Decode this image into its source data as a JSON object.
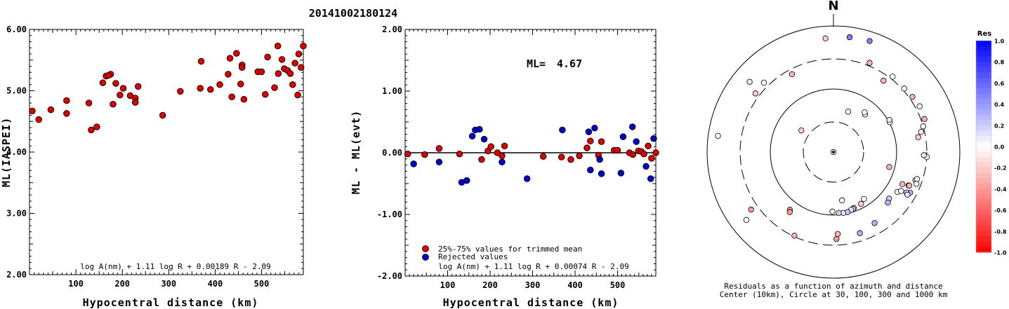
{
  "title": "20141002180124",
  "chart_data": [
    {
      "type": "scatter",
      "ylabel": "ML(IASPEI)",
      "xlabel": "Hypocentral distance (km)",
      "xlim": [
        0,
        590
      ],
      "ylim": [
        2.0,
        6.0
      ],
      "x_ticks": [
        "100",
        "200",
        "300",
        "400",
        "500"
      ],
      "y_ticks": [
        "2.00",
        "3.00",
        "4.00",
        "5.00",
        "6.00"
      ],
      "formula": "log A(nm) + 1.11 log R + 0.00189 R - 2.09",
      "series": [
        {
          "color": "#dd0000",
          "points": [
            [
              6,
              4.67
            ],
            [
              20,
              4.53
            ],
            [
              46,
              4.69
            ],
            [
              80,
              4.84
            ],
            [
              80,
              4.63
            ],
            [
              128,
              4.8
            ],
            [
              133,
              4.36
            ],
            [
              145,
              4.41
            ],
            [
              158,
              5.13
            ],
            [
              165,
              5.24
            ],
            [
              175,
              5.27
            ],
            [
              170,
              5.25
            ],
            [
              180,
              4.78
            ],
            [
              186,
              5.12
            ],
            [
              195,
              4.93
            ],
            [
              202,
              5.04
            ],
            [
              217,
              4.92
            ],
            [
              228,
              4.88
            ],
            [
              228,
              4.81
            ],
            [
              234,
              5.07
            ],
            [
              287,
              4.6
            ],
            [
              325,
              4.99
            ],
            [
              368,
              5.04
            ],
            [
              370,
              5.48
            ],
            [
              390,
              5.02
            ],
            [
              410,
              5.1
            ],
            [
              428,
              5.27
            ],
            [
              432,
              5.53
            ],
            [
              436,
              4.9
            ],
            [
              446,
              5.61
            ],
            [
              455,
              5.11
            ],
            [
              458,
              5.42
            ],
            [
              458,
              5.38
            ],
            [
              462,
              4.86
            ],
            [
              492,
              5.31
            ],
            [
              500,
              5.31
            ],
            [
              508,
              4.94
            ],
            [
              513,
              5.55
            ],
            [
              528,
              5.05
            ],
            [
              535,
              5.73
            ],
            [
              536,
              5.28
            ],
            [
              544,
              5.51
            ],
            [
              549,
              5.36
            ],
            [
              556,
              5.33
            ],
            [
              562,
              5.28
            ],
            [
              567,
              5.1
            ],
            [
              572,
              5.45
            ],
            [
              578,
              4.93
            ],
            [
              580,
              5.6
            ],
            [
              585,
              5.38
            ],
            [
              590,
              5.73
            ]
          ]
        }
      ]
    },
    {
      "type": "scatter",
      "ylabel": "ML - ML(evt)",
      "xlabel": "Hypocentral distance (km)",
      "xlim": [
        0,
        590
      ],
      "ylim": [
        -2.0,
        2.0
      ],
      "x_ticks": [
        "100",
        "200",
        "300",
        "400",
        "500"
      ],
      "y_ticks": [
        "-2.00",
        "-1.00",
        "0.00",
        "1.00",
        "2.00"
      ],
      "ml_label": "ML=",
      "ml_value": "4.67",
      "formula": "log A(nm) + 1.11 log R + 0.00074 R - 2.09",
      "reference_line": 0,
      "legend": [
        {
          "color": "#dd0000",
          "label": "25%-75% values for trimmed mean"
        },
        {
          "color": "#0000cc",
          "label": "Rejected values"
        }
      ],
      "series": [
        {
          "color": "#dd0000",
          "points": [
            [
              6,
              -0.02
            ],
            [
              46,
              -0.03
            ],
            [
              80,
              0.07
            ],
            [
              128,
              -0.02
            ],
            [
              180,
              -0.11
            ],
            [
              195,
              0.03
            ],
            [
              202,
              0.1
            ],
            [
              217,
              0.0
            ],
            [
              228,
              -0.05
            ],
            [
              234,
              0.11
            ],
            [
              325,
              -0.06
            ],
            [
              368,
              -0.07
            ],
            [
              390,
              -0.11
            ],
            [
              410,
              -0.05
            ],
            [
              428,
              0.08
            ],
            [
              436,
              0.19
            ],
            [
              455,
              -0.04
            ],
            [
              462,
              0.18
            ],
            [
              492,
              0.04
            ],
            [
              500,
              0.04
            ],
            [
              528,
              0.0
            ],
            [
              536,
              -0.03
            ],
            [
              549,
              0.03
            ],
            [
              556,
              0.02
            ],
            [
              562,
              -0.02
            ],
            [
              572,
              0.11
            ],
            [
              580,
              -0.09
            ],
            [
              590,
              0.0
            ]
          ]
        },
        {
          "color": "#0000cc",
          "points": [
            [
              20,
              -0.18
            ],
            [
              80,
              -0.15
            ],
            [
              133,
              -0.48
            ],
            [
              145,
              -0.45
            ],
            [
              158,
              0.27
            ],
            [
              165,
              0.37
            ],
            [
              175,
              0.38
            ],
            [
              186,
              0.22
            ],
            [
              228,
              -0.15
            ],
            [
              287,
              -0.42
            ],
            [
              370,
              0.37
            ],
            [
              432,
              0.34
            ],
            [
              436,
              -0.28
            ],
            [
              446,
              0.4
            ],
            [
              458,
              -0.11
            ],
            [
              462,
              -0.34
            ],
            [
              508,
              -0.33
            ],
            [
              513,
              0.26
            ],
            [
              535,
              0.42
            ],
            [
              544,
              0.18
            ],
            [
              567,
              -0.22
            ],
            [
              578,
              -0.42
            ],
            [
              585,
              0.23
            ]
          ]
        }
      ]
    },
    {
      "type": "polar-scatter",
      "north_label": "N",
      "caption_line1": "Residuals as a function of azimuth and distance",
      "caption_line2": "Center (10km), Circle at 30, 100, 300 and 1000 km",
      "colorbar_title": "Res",
      "colorbar_ticks": [
        "1.0",
        "0.8",
        "0.6",
        "0.4",
        "0.2",
        "0.0",
        "-0.2",
        "-0.4",
        "-0.6",
        "-0.8",
        "-1.0"
      ],
      "rings_km": [
        30,
        100,
        300,
        1000
      ],
      "points_azimuth_distance_residual": [
        [
          0,
          10,
          0.0
        ],
        [
          -56,
          41,
          -0.2
        ],
        [
          20,
          48,
          0.0
        ],
        [
          40,
          60,
          0.0
        ],
        [
          38,
          63,
          0.0
        ],
        [
          62,
          102,
          0.0
        ],
        [
          60,
          105,
          -0.1
        ],
        [
          105,
          82,
          -0.3
        ],
        [
          147,
          77,
          0.0
        ],
        [
          152,
          85,
          -0.2
        ],
        [
          160,
          88,
          0.1
        ],
        [
          161,
          90,
          0.2
        ],
        [
          163,
          91,
          0.1
        ],
        [
          167,
          95,
          0.2
        ],
        [
          171,
          95,
          0.1
        ],
        [
          175,
          93,
          0.2
        ],
        [
          181,
          88,
          0.0
        ],
        [
          170,
          60,
          0.0
        ],
        [
          122,
          156,
          0.0
        ],
        [
          130,
          141,
          0.2
        ],
        [
          133,
          150,
          0.3
        ],
        [
          120,
          172,
          0.0
        ],
        [
          114,
          200,
          0.1
        ],
        [
          109,
          235,
          0.2
        ],
        [
          108,
          245,
          0.0
        ],
        [
          118,
          237,
          0.3
        ],
        [
          111,
          255,
          0.0
        ],
        [
          114,
          205,
          -0.3
        ],
        [
          115,
          160,
          -0.3
        ],
        [
          119,
          210,
          0.2
        ],
        [
          120,
          225,
          0.1
        ],
        [
          93,
          300,
          0.0
        ],
        [
          92,
          270,
          -0.1
        ],
        [
          80,
          230,
          -0.2
        ],
        [
          77,
          265,
          -0.1
        ],
        [
          74,
          300,
          0.0
        ],
        [
          70,
          340,
          -0.3
        ],
        [
          62,
          350,
          0.0
        ],
        [
          55,
          335,
          -0.3
        ],
        [
          48,
          320,
          0.0
        ],
        [
          38,
          330,
          0.0
        ],
        [
          8,
          690,
          0.5
        ],
        [
          -4,
          640,
          -0.2
        ],
        [
          18,
          710,
          0.5
        ],
        [
          22,
          335,
          -0.3
        ],
        [
          35,
          240,
          -0.3
        ],
        [
          -28,
          250,
          -0.3
        ],
        [
          -50,
          540,
          -0.1
        ],
        [
          -82,
          700,
          0.0
        ],
        [
          -53,
          350,
          -0.2
        ],
        [
          -45,
          360,
          0.0
        ],
        [
          -125,
          390,
          -0.4
        ],
        [
          -143,
          140,
          -0.4
        ],
        [
          -144,
          150,
          -0.4
        ],
        [
          -155,
          290,
          -0.3
        ],
        [
          177,
          200,
          -0.3
        ],
        [
          178,
          240,
          -0.4
        ],
        [
          -128,
          560,
          0.0
        ],
        [
          162,
          225,
          0.3
        ],
        [
          150,
          200,
          0.3
        ]
      ]
    }
  ]
}
